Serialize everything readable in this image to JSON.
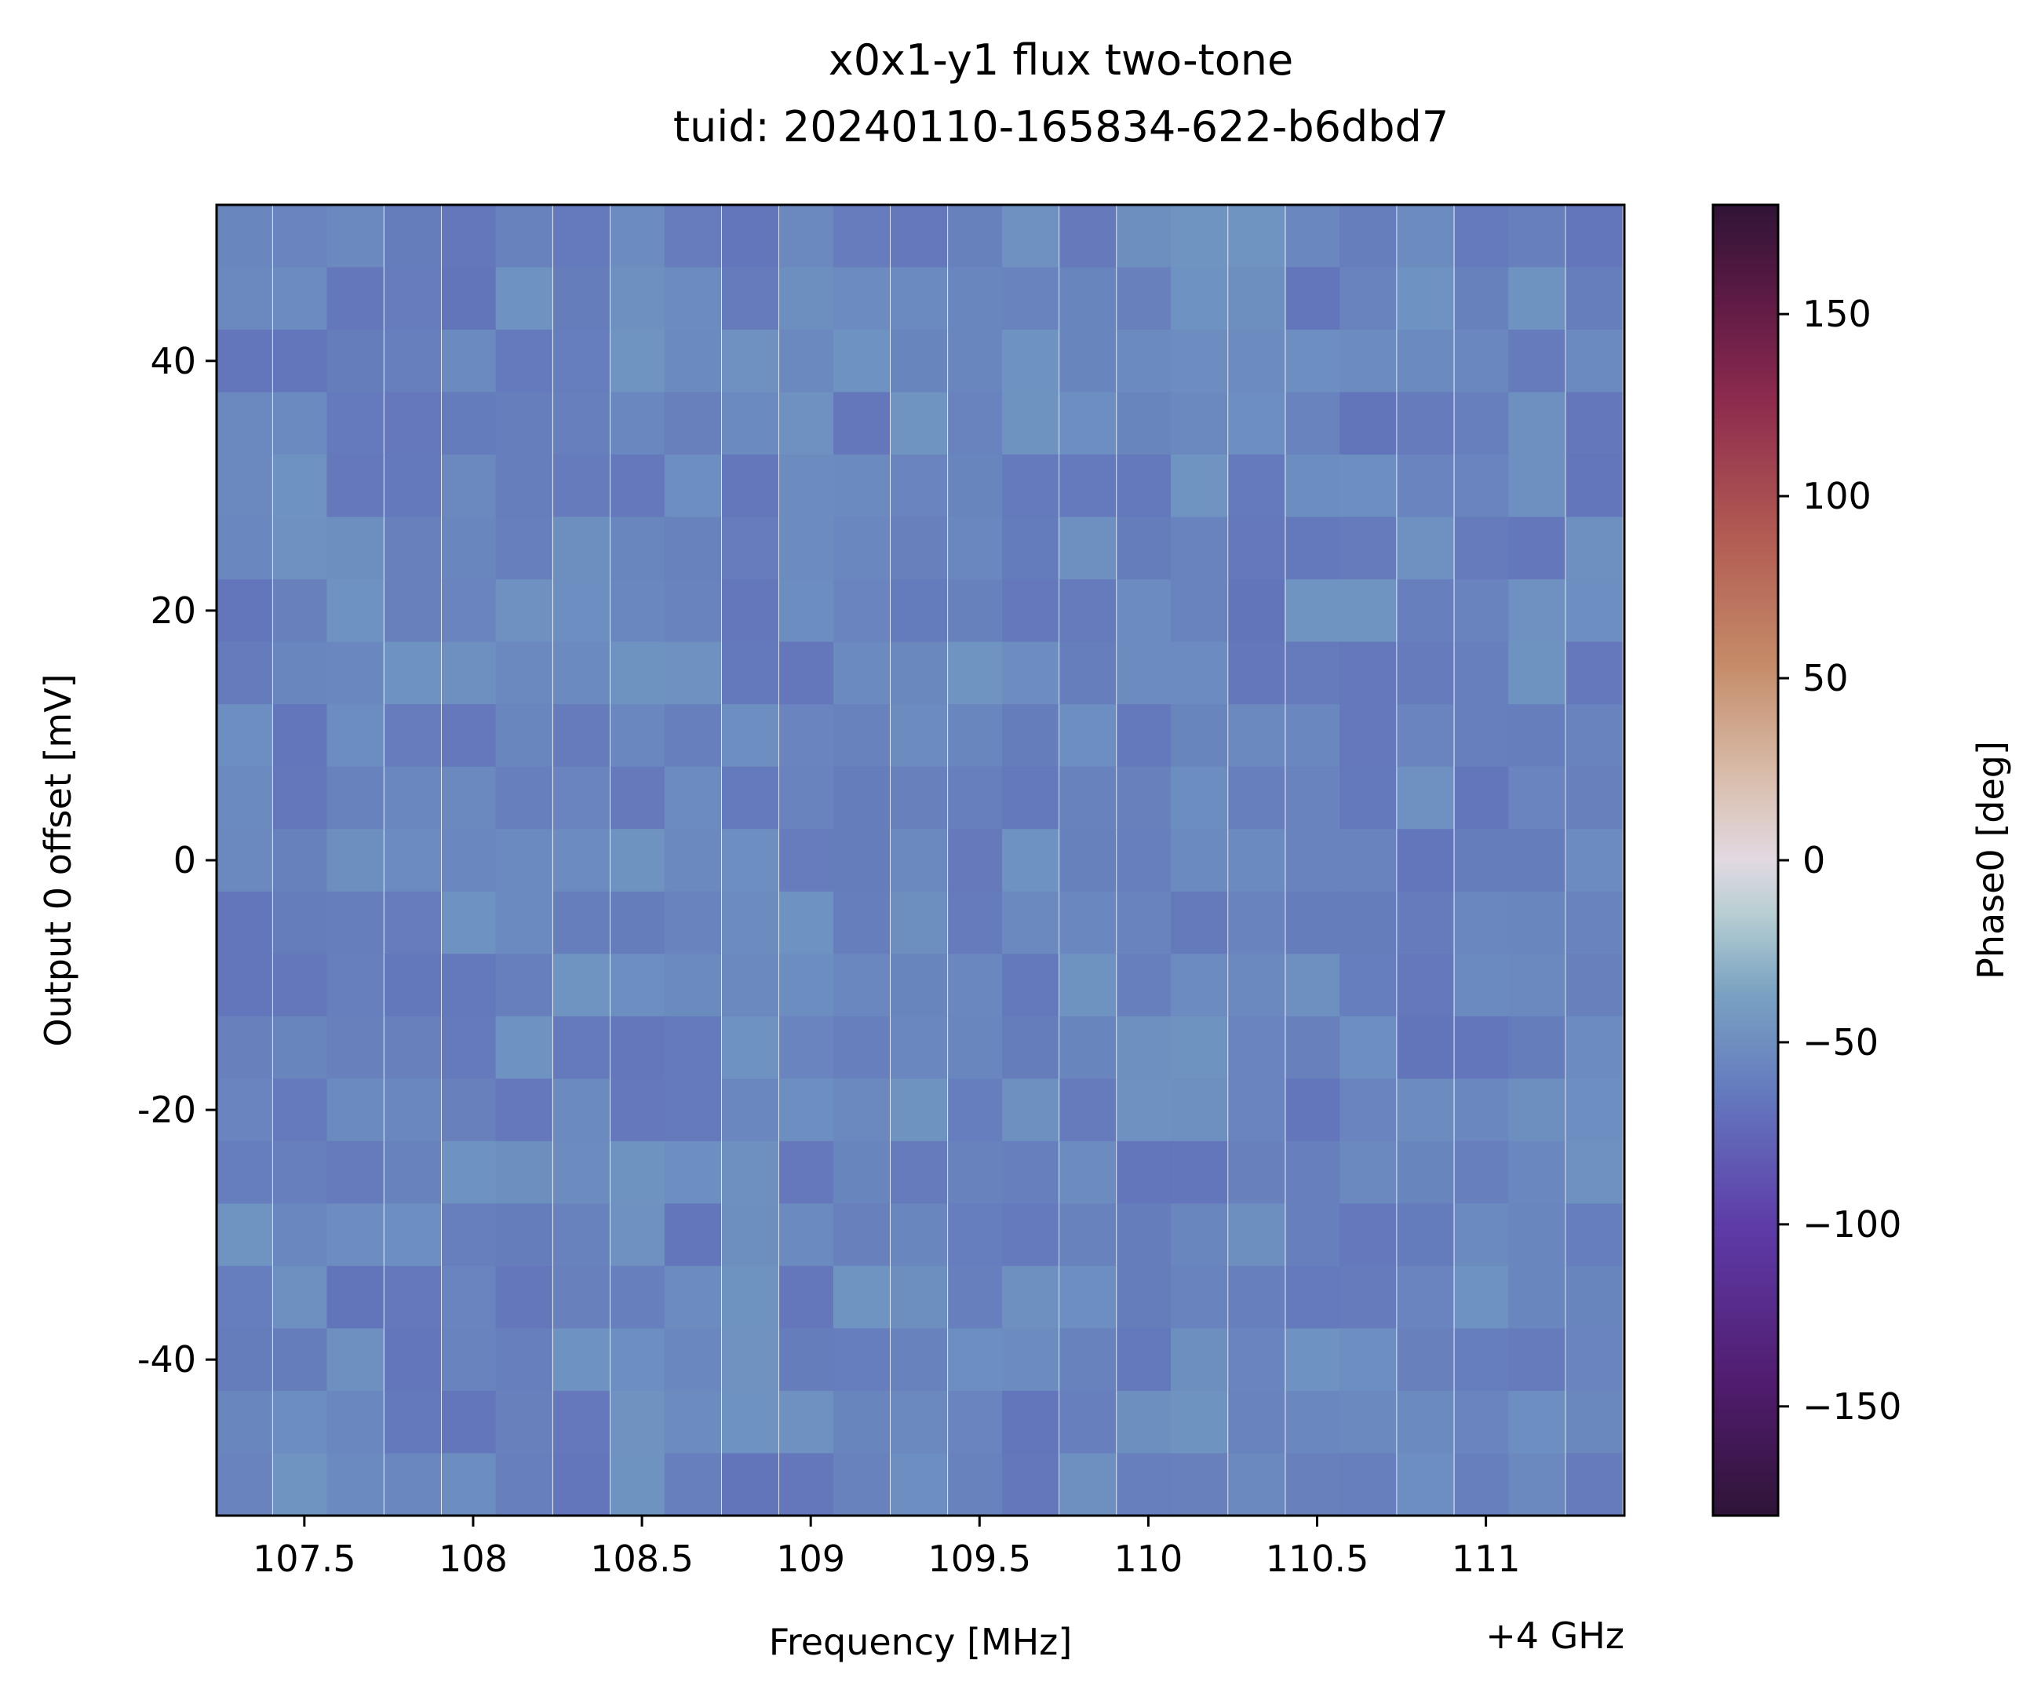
{
  "chart_data": {
    "type": "heatmap",
    "title": "x0x1-y1 flux two-tone",
    "subtitle": "tuid: 20240110-165834-622-b6dbd7",
    "xlabel": "Frequency [MHz]",
    "x_offset_label": "+4 GHz",
    "ylabel": "Output 0 offset [mV]",
    "colorbar_label": "Phase0 [deg]",
    "colormap": "twilight_shifted",
    "clim": [
      -180,
      180
    ],
    "xlim": [
      107.24,
      111.41
    ],
    "ylim": [
      -52.5,
      52.5
    ],
    "x_ticks": [
      107.5,
      108,
      108.5,
      109,
      109.5,
      110,
      110.5,
      111
    ],
    "x_tick_labels": [
      "107.5",
      "108",
      "108.5",
      "109",
      "109.5",
      "110",
      "110.5",
      "111"
    ],
    "y_ticks": [
      40,
      20,
      0,
      -20,
      -40
    ],
    "y_tick_labels": [
      "40",
      "20",
      "0",
      "-20",
      "-40"
    ],
    "colorbar_ticks": [
      150,
      100,
      50,
      0,
      -50,
      -100,
      -150
    ],
    "colorbar_tick_labels": [
      "150",
      "100",
      "50",
      "0",
      "−50",
      "−100",
      "−150"
    ],
    "x_centers": [
      107.32,
      107.49,
      107.65,
      107.82,
      107.99,
      108.15,
      108.32,
      108.49,
      108.65,
      108.82,
      108.99,
      109.15,
      109.32,
      109.49,
      109.65,
      109.82,
      109.99,
      110.15,
      110.32,
      110.49,
      110.65,
      110.82,
      110.99,
      111.15,
      111.32
    ],
    "y_centers": [
      50,
      45,
      40,
      35,
      30,
      25,
      20,
      15,
      10,
      5,
      0,
      -5,
      -10,
      -15,
      -20,
      -25,
      -30,
      -35,
      -40,
      -45,
      -50
    ],
    "value_range": [
      -104,
      -86
    ]
  }
}
